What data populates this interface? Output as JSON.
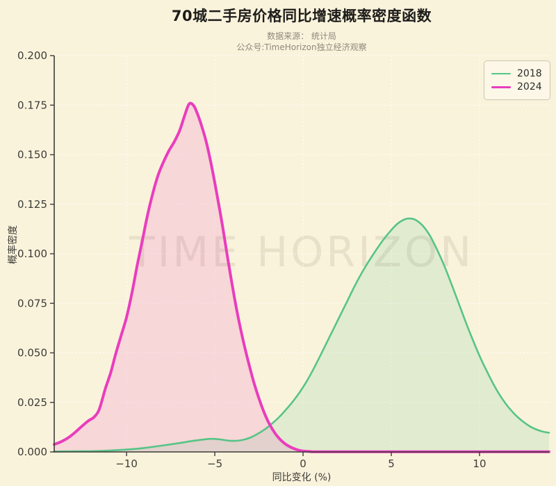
{
  "header": {
    "title": "70城二手房价格同比增速概率密度函数",
    "subtitle_line1": "数据来源： 统计局",
    "subtitle_line2": "公众号:TimeHorizon独立经济观察"
  },
  "watermark": "TIME HORIZON",
  "chart_data": {
    "type": "area",
    "title": "70城二手房价格同比增速概率密度函数",
    "xlabel": "同比变化 (%)",
    "ylabel": "概率密度",
    "xlim": [
      -14.1,
      13.94
    ],
    "ylim": [
      0,
      0.2
    ],
    "grid": true,
    "legend_position": "top-right",
    "background_color": "#faf3dc",
    "axis_color": "#3c3b37",
    "grid_color": "#ffffff",
    "x_ticks": [
      {
        "value": -10,
        "label": "−10"
      },
      {
        "value": -5,
        "label": "−5"
      },
      {
        "value": 0,
        "label": "0"
      },
      {
        "value": 5,
        "label": "5"
      },
      {
        "value": 10,
        "label": "10"
      }
    ],
    "y_ticks": [
      {
        "value": 0.0,
        "label": "0.000"
      },
      {
        "value": 0.025,
        "label": "0.025"
      },
      {
        "value": 0.05,
        "label": "0.050"
      },
      {
        "value": 0.075,
        "label": "0.075"
      },
      {
        "value": 0.1,
        "label": "0.100"
      },
      {
        "value": 0.125,
        "label": "0.125"
      },
      {
        "value": 0.15,
        "label": "0.150"
      },
      {
        "value": 0.175,
        "label": "0.175"
      },
      {
        "value": 0.2,
        "label": "0.200"
      }
    ],
    "series": [
      {
        "name": "2018",
        "color": "#56c487",
        "line_width": 2.6,
        "fill_opacity": 0.15,
        "peak": {
          "x": 6.0,
          "density": 0.118
        },
        "points": [
          [
            -14.1,
            0.0002
          ],
          [
            -13.0,
            0.0003
          ],
          [
            -12.0,
            0.0004
          ],
          [
            -11.0,
            0.0007
          ],
          [
            -10.0,
            0.0012
          ],
          [
            -9.0,
            0.002
          ],
          [
            -8.0,
            0.0032
          ],
          [
            -7.0,
            0.0045
          ],
          [
            -6.3,
            0.0055
          ],
          [
            -5.7,
            0.0062
          ],
          [
            -5.2,
            0.0066
          ],
          [
            -4.7,
            0.0063
          ],
          [
            -4.2,
            0.0057
          ],
          [
            -3.8,
            0.0056
          ],
          [
            -3.4,
            0.0061
          ],
          [
            -3.0,
            0.0072
          ],
          [
            -2.6,
            0.009
          ],
          [
            -2.2,
            0.0112
          ],
          [
            -1.8,
            0.014
          ],
          [
            -1.4,
            0.0172
          ],
          [
            -1.0,
            0.021
          ],
          [
            -0.6,
            0.0252
          ],
          [
            -0.2,
            0.03
          ],
          [
            0.2,
            0.0355
          ],
          [
            0.6,
            0.042
          ],
          [
            1.0,
            0.049
          ],
          [
            1.5,
            0.058
          ],
          [
            2.0,
            0.067
          ],
          [
            2.5,
            0.076
          ],
          [
            3.0,
            0.085
          ],
          [
            3.5,
            0.093
          ],
          [
            4.0,
            0.1
          ],
          [
            4.5,
            0.1065
          ],
          [
            5.0,
            0.112
          ],
          [
            5.4,
            0.1155
          ],
          [
            5.8,
            0.1175
          ],
          [
            6.1,
            0.1178
          ],
          [
            6.4,
            0.117
          ],
          [
            6.8,
            0.114
          ],
          [
            7.2,
            0.109
          ],
          [
            7.6,
            0.102
          ],
          [
            8.0,
            0.094
          ],
          [
            8.4,
            0.085
          ],
          [
            8.8,
            0.0755
          ],
          [
            9.2,
            0.066
          ],
          [
            9.6,
            0.057
          ],
          [
            10.0,
            0.0485
          ],
          [
            10.4,
            0.041
          ],
          [
            10.8,
            0.034
          ],
          [
            11.2,
            0.028
          ],
          [
            11.6,
            0.023
          ],
          [
            12.0,
            0.019
          ],
          [
            12.4,
            0.0158
          ],
          [
            12.8,
            0.0132
          ],
          [
            13.2,
            0.0114
          ],
          [
            13.6,
            0.0102
          ],
          [
            13.94,
            0.0097
          ]
        ]
      },
      {
        "name": "2024",
        "color": "#e93dbd",
        "line_width": 4,
        "fill_opacity": 0.15,
        "peak": {
          "x": -6.4,
          "density": 0.176
        },
        "points": [
          [
            -14.1,
            0.0038
          ],
          [
            -13.7,
            0.0052
          ],
          [
            -13.3,
            0.0072
          ],
          [
            -12.9,
            0.01
          ],
          [
            -12.5,
            0.0132
          ],
          [
            -12.15,
            0.0158
          ],
          [
            -11.85,
            0.0175
          ],
          [
            -11.55,
            0.0215
          ],
          [
            -11.2,
            0.032
          ],
          [
            -10.9,
            0.04
          ],
          [
            -10.6,
            0.05
          ],
          [
            -10.3,
            0.059
          ],
          [
            -10.0,
            0.068
          ],
          [
            -9.7,
            0.08
          ],
          [
            -9.4,
            0.094
          ],
          [
            -9.1,
            0.107
          ],
          [
            -8.8,
            0.12
          ],
          [
            -8.5,
            0.131
          ],
          [
            -8.2,
            0.14
          ],
          [
            -7.9,
            0.1465
          ],
          [
            -7.6,
            0.152
          ],
          [
            -7.3,
            0.1565
          ],
          [
            -7.0,
            0.162
          ],
          [
            -6.7,
            0.17
          ],
          [
            -6.45,
            0.1757
          ],
          [
            -6.2,
            0.1748
          ],
          [
            -6.0,
            0.171
          ],
          [
            -5.8,
            0.166
          ],
          [
            -5.5,
            0.157
          ],
          [
            -5.2,
            0.145
          ],
          [
            -4.9,
            0.131
          ],
          [
            -4.6,
            0.116
          ],
          [
            -4.3,
            0.0995
          ],
          [
            -4.0,
            0.0835
          ],
          [
            -3.7,
            0.069
          ],
          [
            -3.4,
            0.0565
          ],
          [
            -3.1,
            0.0455
          ],
          [
            -2.8,
            0.0355
          ],
          [
            -2.5,
            0.027
          ],
          [
            -2.2,
            0.0198
          ],
          [
            -1.9,
            0.014
          ],
          [
            -1.6,
            0.0096
          ],
          [
            -1.3,
            0.0063
          ],
          [
            -1.0,
            0.004
          ],
          [
            -0.7,
            0.0024
          ],
          [
            -0.4,
            0.0013
          ],
          [
            -0.1,
            0.0006
          ],
          [
            0.4,
            0.0002
          ],
          [
            1.0,
            0.0001
          ],
          [
            6.0,
            0.0001
          ],
          [
            13.94,
            0.0001
          ]
        ]
      }
    ]
  }
}
